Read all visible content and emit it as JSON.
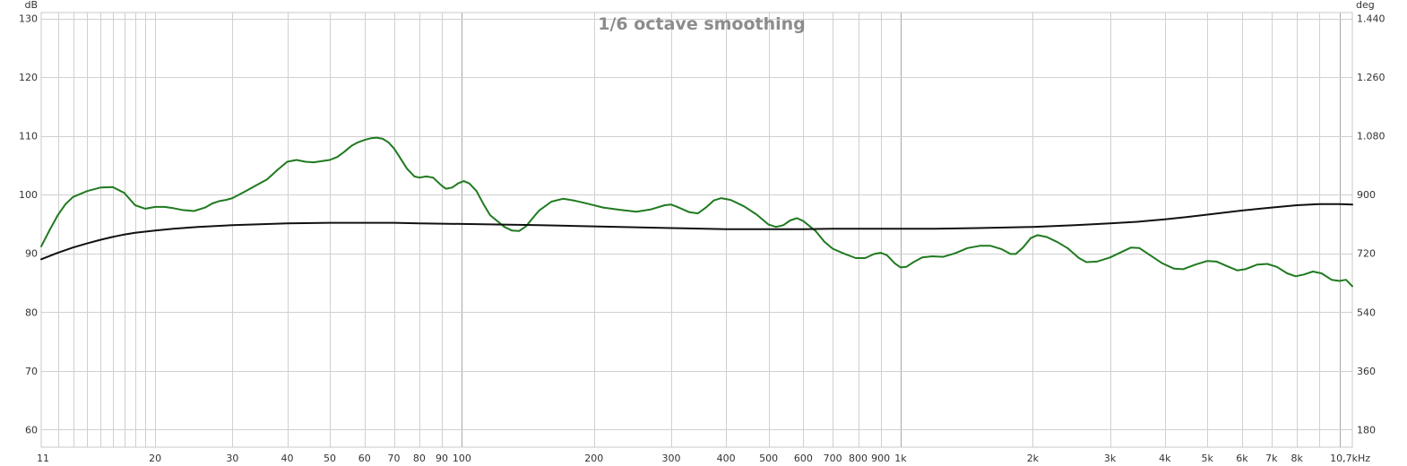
{
  "chart_data": {
    "type": "line",
    "title": "1/6 octave smoothing",
    "x_scale": "log",
    "x_unit": "Hz",
    "xlim": [
      11,
      10700
    ],
    "x_ticks": [
      {
        "v": 11,
        "label": "11"
      },
      {
        "v": 20,
        "label": "20"
      },
      {
        "v": 30,
        "label": "30"
      },
      {
        "v": 40,
        "label": "40"
      },
      {
        "v": 50,
        "label": "50"
      },
      {
        "v": 60,
        "label": "60"
      },
      {
        "v": 70,
        "label": "70"
      },
      {
        "v": 80,
        "label": "80"
      },
      {
        "v": 90,
        "label": "90"
      },
      {
        "v": 100,
        "label": "100"
      },
      {
        "v": 200,
        "label": "200"
      },
      {
        "v": 300,
        "label": "300"
      },
      {
        "v": 400,
        "label": "400"
      },
      {
        "v": 500,
        "label": "500"
      },
      {
        "v": 600,
        "label": "600"
      },
      {
        "v": 700,
        "label": "700"
      },
      {
        "v": 800,
        "label": "800"
      },
      {
        "v": 900,
        "label": "900"
      },
      {
        "v": 1000,
        "label": "1k"
      },
      {
        "v": 2000,
        "label": "2k"
      },
      {
        "v": 3000,
        "label": "3k"
      },
      {
        "v": 4000,
        "label": "4k"
      },
      {
        "v": 5000,
        "label": "5k"
      },
      {
        "v": 6000,
        "label": "6k"
      },
      {
        "v": 7000,
        "label": "7k"
      },
      {
        "v": 8000,
        "label": "8k"
      },
      {
        "v": 10700,
        "label": "10,7kHz"
      }
    ],
    "x_grid_minor": [
      12,
      13,
      14,
      15,
      16,
      17,
      18,
      19,
      20,
      30,
      40,
      50,
      60,
      70,
      80,
      90,
      200,
      300,
      400,
      500,
      600,
      700,
      800,
      900,
      2000,
      3000,
      4000,
      5000,
      6000,
      7000,
      8000,
      9000
    ],
    "x_grid_major": [
      100,
      1000,
      10000
    ],
    "y_left": {
      "label": "dB",
      "ylim": [
        57,
        131
      ],
      "ticks": [
        60,
        70,
        80,
        90,
        100,
        110,
        120,
        130
      ]
    },
    "y_right": {
      "label": "deg",
      "ticks": [
        "180",
        "360",
        "540",
        "720",
        "900",
        "1.080",
        "1.260",
        "1.440"
      ]
    },
    "series": [
      {
        "color": "#1f7a1f",
        "axis": "left",
        "points": [
          [
            11,
            91.2
          ],
          [
            11.5,
            94
          ],
          [
            12,
            96.5
          ],
          [
            12.5,
            98.4
          ],
          [
            13,
            99.6
          ],
          [
            14,
            100.6
          ],
          [
            15,
            101.2
          ],
          [
            16,
            101.3
          ],
          [
            17,
            100.3
          ],
          [
            18,
            98.2
          ],
          [
            19,
            97.6
          ],
          [
            20,
            97.9
          ],
          [
            21,
            97.9
          ],
          [
            22,
            97.7
          ],
          [
            23,
            97.4
          ],
          [
            24.5,
            97.2
          ],
          [
            26,
            97.8
          ],
          [
            27,
            98.5
          ],
          [
            28,
            98.9
          ],
          [
            29,
            99.1
          ],
          [
            30,
            99.4
          ],
          [
            32,
            100.5
          ],
          [
            34,
            101.6
          ],
          [
            36,
            102.6
          ],
          [
            38,
            104.2
          ],
          [
            40,
            105.6
          ],
          [
            42,
            105.9
          ],
          [
            44,
            105.6
          ],
          [
            46,
            105.5
          ],
          [
            48,
            105.7
          ],
          [
            50,
            105.9
          ],
          [
            52,
            106.4
          ],
          [
            54,
            107.3
          ],
          [
            56,
            108.3
          ],
          [
            58,
            108.9
          ],
          [
            60,
            109.3
          ],
          [
            62,
            109.6
          ],
          [
            64,
            109.7
          ],
          [
            66,
            109.5
          ],
          [
            68,
            108.9
          ],
          [
            70,
            107.9
          ],
          [
            72,
            106.5
          ],
          [
            75,
            104.4
          ],
          [
            78,
            103.1
          ],
          [
            80,
            102.9
          ],
          [
            83,
            103.1
          ],
          [
            86,
            102.9
          ],
          [
            88,
            102.2
          ],
          [
            90,
            101.5
          ],
          [
            92,
            101.0
          ],
          [
            95,
            101.2
          ],
          [
            98,
            101.9
          ],
          [
            101,
            102.3
          ],
          [
            104,
            101.9
          ],
          [
            108,
            100.6
          ],
          [
            112,
            98.4
          ],
          [
            116,
            96.5
          ],
          [
            120,
            95.6
          ],
          [
            125,
            94.5
          ],
          [
            130,
            93.9
          ],
          [
            135,
            93.8
          ],
          [
            140,
            94.6
          ],
          [
            145,
            96.0
          ],
          [
            150,
            97.3
          ],
          [
            160,
            98.8
          ],
          [
            170,
            99.3
          ],
          [
            180,
            99.0
          ],
          [
            195,
            98.4
          ],
          [
            210,
            97.8
          ],
          [
            230,
            97.4
          ],
          [
            250,
            97.1
          ],
          [
            270,
            97.5
          ],
          [
            290,
            98.2
          ],
          [
            300,
            98.3
          ],
          [
            310,
            97.9
          ],
          [
            330,
            97.0
          ],
          [
            345,
            96.8
          ],
          [
            360,
            97.8
          ],
          [
            375,
            99.0
          ],
          [
            390,
            99.4
          ],
          [
            410,
            99.1
          ],
          [
            440,
            98.0
          ],
          [
            470,
            96.6
          ],
          [
            500,
            94.9
          ],
          [
            520,
            94.5
          ],
          [
            540,
            94.8
          ],
          [
            560,
            95.6
          ],
          [
            580,
            96.0
          ],
          [
            600,
            95.5
          ],
          [
            640,
            93.8
          ],
          [
            670,
            92.0
          ],
          [
            700,
            90.8
          ],
          [
            740,
            90.0
          ],
          [
            790,
            89.2
          ],
          [
            830,
            89.2
          ],
          [
            870,
            89.9
          ],
          [
            900,
            90.1
          ],
          [
            930,
            89.7
          ],
          [
            970,
            88.3
          ],
          [
            1000,
            87.6
          ],
          [
            1030,
            87.7
          ],
          [
            1070,
            88.5
          ],
          [
            1120,
            89.3
          ],
          [
            1180,
            89.5
          ],
          [
            1250,
            89.4
          ],
          [
            1330,
            90.0
          ],
          [
            1420,
            90.9
          ],
          [
            1520,
            91.3
          ],
          [
            1600,
            91.3
          ],
          [
            1700,
            90.7
          ],
          [
            1780,
            89.9
          ],
          [
            1830,
            89.9
          ],
          [
            1900,
            91.0
          ],
          [
            1980,
            92.6
          ],
          [
            2050,
            93.1
          ],
          [
            2150,
            92.8
          ],
          [
            2280,
            91.9
          ],
          [
            2400,
            90.9
          ],
          [
            2550,
            89.2
          ],
          [
            2650,
            88.5
          ],
          [
            2800,
            88.6
          ],
          [
            3000,
            89.3
          ],
          [
            3200,
            90.3
          ],
          [
            3350,
            91.0
          ],
          [
            3500,
            90.9
          ],
          [
            3700,
            89.7
          ],
          [
            3950,
            88.3
          ],
          [
            4200,
            87.4
          ],
          [
            4400,
            87.3
          ],
          [
            4700,
            88.1
          ],
          [
            5000,
            88.7
          ],
          [
            5250,
            88.6
          ],
          [
            5550,
            87.8
          ],
          [
            5850,
            87.1
          ],
          [
            6100,
            87.3
          ],
          [
            6500,
            88.1
          ],
          [
            6850,
            88.2
          ],
          [
            7200,
            87.7
          ],
          [
            7600,
            86.6
          ],
          [
            7950,
            86.1
          ],
          [
            8300,
            86.4
          ],
          [
            8700,
            86.9
          ],
          [
            9100,
            86.6
          ],
          [
            9600,
            85.5
          ],
          [
            10000,
            85.3
          ],
          [
            10350,
            85.5
          ],
          [
            10700,
            84.4
          ]
        ]
      },
      {
        "color": "#111111",
        "axis": "left",
        "points": [
          [
            11,
            89.0
          ],
          [
            12,
            90.1
          ],
          [
            13,
            91.0
          ],
          [
            14,
            91.7
          ],
          [
            15,
            92.3
          ],
          [
            16,
            92.8
          ],
          [
            17,
            93.2
          ],
          [
            18,
            93.5
          ],
          [
            20,
            93.9
          ],
          [
            22,
            94.2
          ],
          [
            25,
            94.5
          ],
          [
            30,
            94.8
          ],
          [
            40,
            95.1
          ],
          [
            50,
            95.2
          ],
          [
            60,
            95.2
          ],
          [
            70,
            95.2
          ],
          [
            80,
            95.1
          ],
          [
            100,
            95.0
          ],
          [
            150,
            94.8
          ],
          [
            200,
            94.6
          ],
          [
            300,
            94.3
          ],
          [
            400,
            94.1
          ],
          [
            500,
            94.1
          ],
          [
            600,
            94.1
          ],
          [
            700,
            94.2
          ],
          [
            800,
            94.2
          ],
          [
            1000,
            94.2
          ],
          [
            1200,
            94.2
          ],
          [
            1500,
            94.3
          ],
          [
            2000,
            94.5
          ],
          [
            2500,
            94.8
          ],
          [
            3000,
            95.1
          ],
          [
            3500,
            95.4
          ],
          [
            4000,
            95.8
          ],
          [
            4500,
            96.2
          ],
          [
            5000,
            96.6
          ],
          [
            6000,
            97.3
          ],
          [
            7000,
            97.8
          ],
          [
            8000,
            98.2
          ],
          [
            9000,
            98.4
          ],
          [
            10000,
            98.4
          ],
          [
            10700,
            98.3
          ]
        ]
      }
    ]
  }
}
